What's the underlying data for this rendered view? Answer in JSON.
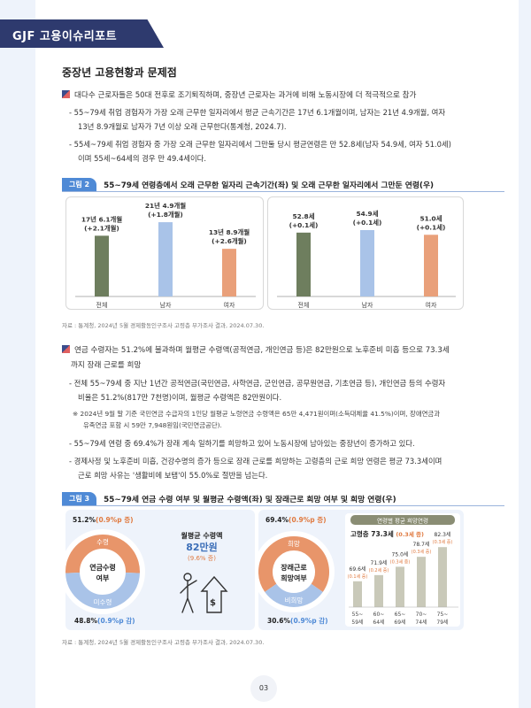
{
  "header": {
    "title": "GJF 고용이슈리포트"
  },
  "section": {
    "title": "중장년 고용현황과 문제점"
  },
  "paragraphs": {
    "p1": "대다수 근로자들은 50대 전후로 조기퇴직하며, 중장년 근로자는 과거에 비해 노동시장에 더 적극적으로 참가",
    "p1_s1a": "- 55~79세 취업 경험자가 가장 오래 근무한 일자리에서 평균 근속기간은 17년 6.1개월이며, 남자는 21년 4.9개월, 여자",
    "p1_s1b": "13년 8.9개월로 남자가 7년 이상 오래 근무한다(통계청, 2024.7).",
    "p1_s2a": "- 55세~79세 취업 경험자 중 가장 오래 근무한 일자리에서 그만둘 당시 평균연령은 만 52.8세(남자 54.9세, 여자 51.0세)",
    "p1_s2b": "이며 55세~64세의 경우 만 49.4세이다.",
    "p2a": "연금 수령자는 51.2%에 불과하며 월평균 수령액(공적연금, 개인연금 등)은 82만원으로 노후준비 미흡 등으로 73.3세",
    "p2b": "까지 장래 근로를 희망",
    "p2_s1a": "- 전체 55~79세 중 지난 1년간 공적연금(국민연금, 사학연금, 군인연금, 공무원연금, 기초연금 등), 개인연금 등의 수령자",
    "p2_s1b": "비율은 51.2%(817만 7천명)이며, 월평균 수령액은 82만원이다.",
    "note_a": "※ 2024년 9월 말 기준 국민연금 수급자의 1인당 월평균 노령연금 수령액은 65만 4,471원이며(소득대체율 41.5%)이며, 장애연금과",
    "note_b": "유족연금 포함 시 59만 7,948원임(국민연금공단).",
    "p2_s2": "- 55~79세 연령 중 69.4%가 장래 계속 일하기를 희망하고 있어 노동시장에 남아있는 중장년이 증가하고 있다.",
    "p2_s3a": "- 경제사정 및 노후준비 미흡, 건강수명의 증가 등으로 장래 근로를 희망하는 고령층의 근로 희망 연령은 평균 73.3세이며",
    "p2_s3b": "근로 희망 사유는 '생활비에 보탬'이 55.0%로 절반을 넘는다."
  },
  "figure2": {
    "tag": "그림 2",
    "title": "55~79세 연령층에서 오래 근무한 일자리 근속기간(좌) 및 오래 근무한 일자리에서 그만둔 연령(우)",
    "source": "자료 : 통계청, 2024년 5월 경제활동인구조사 고령층 부가조사 결과, 2024.07.30."
  },
  "figure3": {
    "tag": "그림 3",
    "title": "55~79세 연금 수령 여부 및 월평균 수령액(좌) 및 장래근로 희망 여부 및 희망 연령(우)",
    "source": "자료 : 통계청, 2024년 5월 경제활동인구조사 고령층 부가조사 결과, 2024.07.30.",
    "amount_label": "월평균 수령액",
    "amount_value": "82만원",
    "amount_change": "(9.6% 증)",
    "age_header": "연령별 평균 희망연령",
    "avg_label": "고령층 73.3세",
    "avg_change": "(0.3세 증)"
  },
  "page": {
    "number": "03"
  },
  "chart_data": [
    {
      "type": "bar",
      "title": "",
      "categories": [
        "전체",
        "남자",
        "여자"
      ],
      "values": [
        17.51,
        21.41,
        13.74
      ],
      "labels": [
        "17년 6.1개월",
        "21년 4.9개월",
        "13년 8.9개월"
      ],
      "changes": [
        "(+2.1개월)",
        "(+1.8개월)",
        "(+2.6개월)"
      ],
      "colors": [
        "#6e7e5e",
        "#a9c3e8",
        "#e9a07a"
      ],
      "ylim": [
        0,
        25
      ],
      "grid": false
    },
    {
      "type": "bar",
      "title": "",
      "categories": [
        "전체",
        "남자",
        "여자"
      ],
      "values": [
        52.8,
        54.9,
        51.0
      ],
      "labels": [
        "52.8세",
        "54.9세",
        "51.0세"
      ],
      "changes": [
        "(+0.1세)",
        "(+0.1세)",
        "(+0.1세)"
      ],
      "colors": [
        "#6e7e5e",
        "#a9c3e8",
        "#e9a07a"
      ],
      "ylim": [
        0,
        60
      ],
      "grid": false
    },
    {
      "type": "pie",
      "center_label": [
        "연금수령",
        "여부"
      ],
      "slices": [
        {
          "name": "수령",
          "value": 51.2,
          "label": "51.2%",
          "change": "(0.9%p 증)",
          "color": "#e8956a"
        },
        {
          "name": "미수령",
          "value": 48.8,
          "label": "48.8%",
          "change": "(0.9%p 감)",
          "color": "#a9c3e8"
        }
      ]
    },
    {
      "type": "pie",
      "center_label": [
        "장래근로",
        "희망여부"
      ],
      "slices": [
        {
          "name": "희망",
          "value": 69.4,
          "label": "69.4%",
          "change": "(0.9%p 증)",
          "color": "#e8956a"
        },
        {
          "name": "비희망",
          "value": 30.6,
          "label": "30.6%",
          "change": "(0.9%p 감)",
          "color": "#a9c3e8"
        }
      ]
    },
    {
      "type": "bar",
      "title": "연령별 평균 희망연령",
      "categories": [
        "55~59세",
        "60~64세",
        "65~69세",
        "70~74세",
        "75~79세"
      ],
      "values": [
        69.6,
        71.9,
        75.0,
        78.7,
        82.3
      ],
      "labels": [
        "69.6세",
        "71.9세",
        "75.0세",
        "78.7세",
        "82.3세"
      ],
      "changes": [
        "(0.1세 증)",
        "(0.2세 증)",
        "(0.3세 증)",
        "(0.3세 증)",
        "(0.3세 증)"
      ],
      "color": "#c9c9b9",
      "ylim": [
        60,
        85
      ]
    }
  ]
}
